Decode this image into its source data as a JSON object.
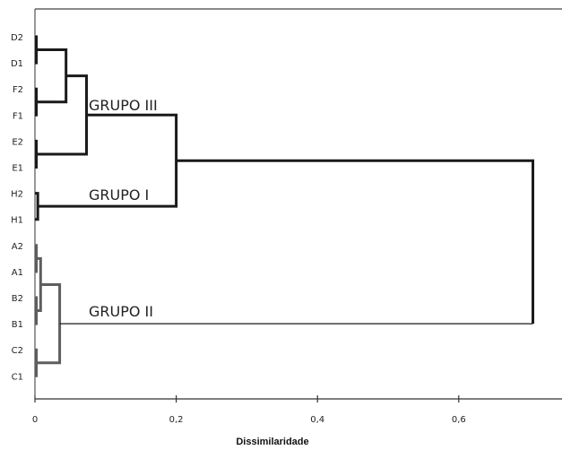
{
  "chart_data": {
    "type": "dendrogram",
    "xlabel": "Dissimilaridade",
    "xlim": [
      0,
      0.74
    ],
    "x_ticks": [
      "0",
      "0,2",
      "0,4",
      "0,6"
    ],
    "x_tick_values": [
      0,
      0.2,
      0.4,
      0.6
    ],
    "leaves": [
      "D2",
      "D1",
      "F2",
      "F1",
      "E2",
      "E1",
      "H2",
      "H1",
      "A2",
      "A1",
      "B2",
      "B1",
      "C2",
      "C1"
    ],
    "merges": [
      {
        "left": "D2",
        "right": "D1",
        "height": 0.002
      },
      {
        "left": "F2",
        "right": "F1",
        "height": 0.002
      },
      {
        "left": "E2",
        "right": "E1",
        "height": 0.002
      },
      {
        "left": "H2",
        "right": "H1",
        "height": 0.004
      },
      {
        "left": "A2",
        "right": "A1",
        "height": 0.002
      },
      {
        "left": "B2",
        "right": "B1",
        "height": 0.002
      },
      {
        "left": "C2",
        "right": "C1",
        "height": 0.002
      },
      {
        "left": "D2-D1",
        "right": "F2-F1",
        "height": 0.044
      },
      {
        "left": "A2-A1",
        "right": "B2-B1",
        "height": 0.008
      },
      {
        "left": "D-F",
        "right": "E2-E1",
        "height": 0.073
      },
      {
        "left": "A-B",
        "right": "C2-C1",
        "height": 0.035
      },
      {
        "left": "D-F-E",
        "right": "H2-H1",
        "height": 0.2
      },
      {
        "left": "GRUPO III + GRUPO I",
        "right": "GRUPO II",
        "height": 0.705
      }
    ],
    "groups": [
      {
        "label": "GRUPO III",
        "members": [
          "D2",
          "D1",
          "F2",
          "F1",
          "E2",
          "E1"
        ]
      },
      {
        "label": "GRUPO I",
        "members": [
          "H2",
          "H1"
        ]
      },
      {
        "label": "GRUPO II",
        "members": [
          "A2",
          "A1",
          "B2",
          "B1",
          "C2",
          "C1"
        ]
      }
    ],
    "colors": {
      "dark": "#1a1a1a",
      "gray": "#5e5e5e",
      "axis": "#333333"
    }
  }
}
